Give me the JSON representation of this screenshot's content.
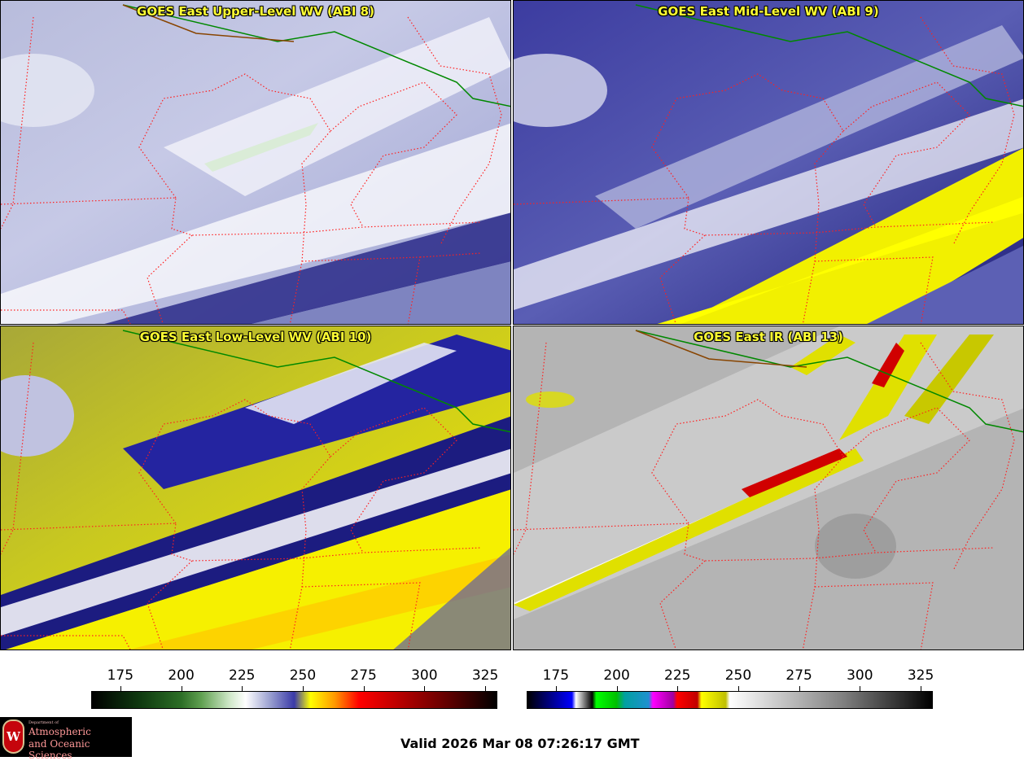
{
  "panels": [
    {
      "title": "GOES East Upper-Level WV (ABI 8)"
    },
    {
      "title": "GOES East Mid-Level WV (ABI 9)"
    },
    {
      "title": "GOES East Low-Level WV (ABI 10)"
    },
    {
      "title": "GOES East IR (ABI 13)"
    }
  ],
  "colorbar_wv": {
    "ticks": [
      "175",
      "200",
      "225",
      "250",
      "275",
      "300",
      "325"
    ],
    "min": 163,
    "max": 330
  },
  "colorbar_ir": {
    "ticks": [
      "175",
      "200",
      "225",
      "250",
      "275",
      "300",
      "325"
    ],
    "min": 163,
    "max": 330
  },
  "logo": {
    "dept": "Department of",
    "line1": "Atmospheric",
    "line2": "and Oceanic Sciences",
    "crest": "W"
  },
  "valid_time": "Valid 2026 Mar 08 07:26:17 GMT",
  "colors": {
    "title": "#ffff33",
    "state_borders": "#ff2020",
    "us_canada_border": "#00a000"
  }
}
